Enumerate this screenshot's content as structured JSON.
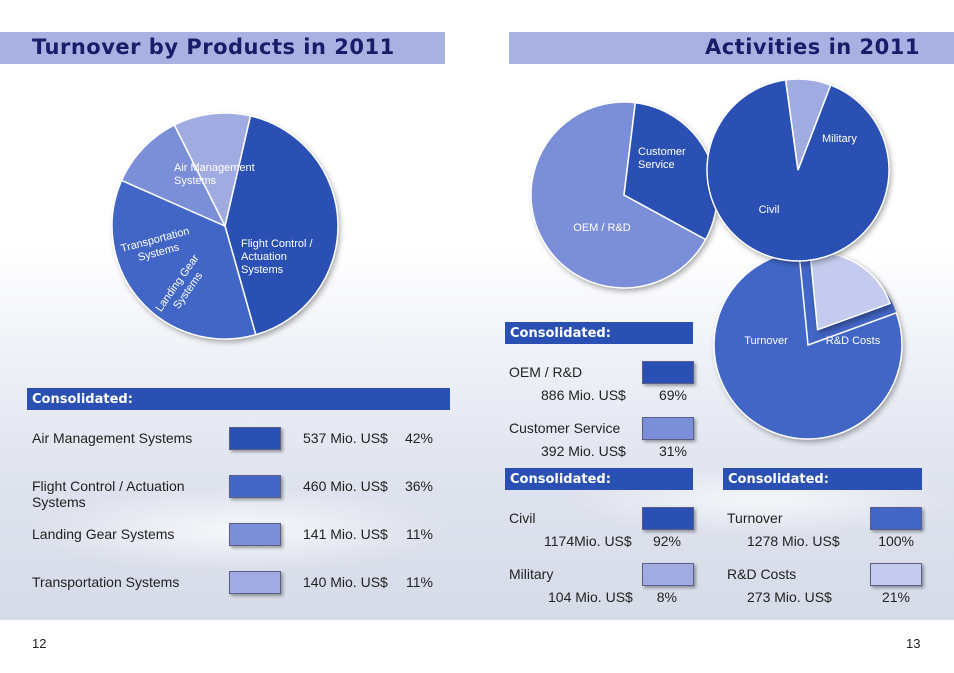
{
  "colors": {
    "dark": "#2a50b4",
    "mid": "#4266c6",
    "light": "#7b8ed8",
    "lighter": "#a0abe2",
    "pale": "#c4cbee",
    "header": "#a9b1e2"
  },
  "left": {
    "title": "Turnover by Products in 2011",
    "consolidated": "Consolidated:",
    "rows": [
      {
        "label": "Air Management Systems",
        "amount": "537 Mio. US$",
        "pct": "42%",
        "color": "#2a50b4"
      },
      {
        "label": "Flight Control / Actuation Systems",
        "amount": "460 Mio. US$",
        "pct": "36%",
        "color": "#4266c6"
      },
      {
        "label": "Landing Gear Systems",
        "amount": "141 Mio. US$",
        "pct": "11%",
        "color": "#7b8ed8"
      },
      {
        "label": "Transportation Systems",
        "amount": "140 Mio. US$",
        "pct": "11%",
        "color": "#a0abe2"
      }
    ]
  },
  "right": {
    "title": "Activities in 2011",
    "oem": {
      "consolidated": "Consolidated:",
      "rows": [
        {
          "label": "OEM / R&D",
          "amount": "886 Mio. US$",
          "pct": "69%",
          "color": "#2a50b4"
        },
        {
          "label": "Customer Service",
          "amount": "392 Mio. US$",
          "pct": "31%",
          "color": "#7b8ed8"
        }
      ]
    },
    "civil": {
      "consolidated": "Consolidated:",
      "rows": [
        {
          "label": "Civil",
          "amount": "1174Mio. US$",
          "pct": "92%",
          "color": "#2a50b4"
        },
        {
          "label": "Military",
          "amount": "104 Mio. US$",
          "pct": "8%",
          "color": "#a0abe2"
        }
      ]
    },
    "turnover": {
      "consolidated": "Consolidated:",
      "rows": [
        {
          "label": "Turnover",
          "amount": "1278 Mio. US$",
          "pct": "100%",
          "color": "#4266c6"
        },
        {
          "label": "R&D Costs",
          "amount": "273 Mio. US$",
          "pct": "21%",
          "color": "#c4cbee"
        }
      ]
    }
  },
  "chart_data": [
    {
      "type": "pie",
      "title": "Turnover by Products in 2011",
      "categories": [
        "Air Management Systems",
        "Flight Control / Actuation Systems",
        "Landing Gear Systems",
        "Transportation Systems"
      ],
      "values": [
        42,
        36,
        11,
        11
      ],
      "labels": [
        "Air Management\nSystems",
        "Flight Control /\nActuation\nSystems",
        "Landing Gear\nSystems",
        "Transportation\nSystems"
      ]
    },
    {
      "type": "pie",
      "categories": [
        "OEM / R&D",
        "Customer Service"
      ],
      "values": [
        69,
        31
      ],
      "labels": [
        "OEM / R&D",
        "Customer\nService"
      ]
    },
    {
      "type": "pie",
      "categories": [
        "Civil",
        "Military"
      ],
      "values": [
        92,
        8
      ],
      "labels": [
        "Civil",
        "Military"
      ]
    },
    {
      "type": "pie",
      "categories": [
        "Turnover",
        "R&D Costs"
      ],
      "values": [
        79,
        21
      ],
      "labels": [
        "Turnover",
        "R&D Costs"
      ]
    }
  ],
  "pages": {
    "left": "12",
    "right": "13"
  }
}
